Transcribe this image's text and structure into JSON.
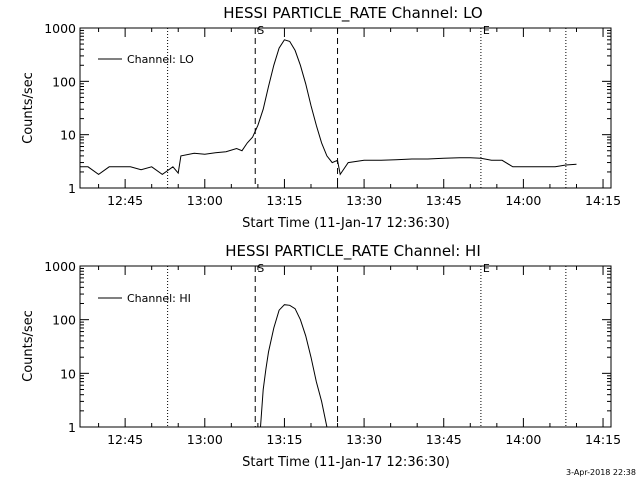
{
  "chart_data": [
    {
      "type": "line",
      "title": "HESSI PARTICLE_RATE Channel: LO",
      "xlabel": "Start Time (11-Jan-17 12:36:30)",
      "ylabel": "Counts/sec",
      "y_scale": "log",
      "ylim": [
        1,
        1000
      ],
      "xlim": [
        "12:36:30",
        "14:16:30"
      ],
      "x_ticks": [
        "12:45",
        "13:00",
        "13:15",
        "13:30",
        "13:45",
        "14:00",
        "14:15"
      ],
      "y_ticks": [
        "1",
        "10",
        "100",
        "1000"
      ],
      "grid": false,
      "legend_position": "top-left",
      "series": [
        {
          "name": "Channel: LO",
          "x": [
            "12:36:30",
            "12:38:00",
            "12:40:00",
            "12:42:00",
            "12:44:00",
            "12:46:00",
            "12:48:00",
            "12:50:00",
            "12:52:00",
            "12:54:00",
            "12:55:00",
            "12:55:30",
            "12:58:00",
            "13:00:00",
            "13:02:00",
            "13:04:00",
            "13:06:00",
            "13:07:00",
            "13:08:00",
            "13:09:00",
            "13:10:00",
            "13:11:00",
            "13:12:00",
            "13:13:00",
            "13:14:00",
            "13:15:00",
            "13:16:00",
            "13:17:00",
            "13:18:00",
            "13:19:00",
            "13:20:00",
            "13:21:00",
            "13:22:00",
            "13:23:00",
            "13:24:00",
            "13:25:00",
            "13:25:30",
            "13:27:00",
            "13:30:00",
            "13:33:00",
            "13:36:00",
            "13:39:00",
            "13:42:00",
            "13:45:00",
            "13:48:00",
            "13:50:00",
            "13:52:00",
            "13:54:00",
            "13:56:00",
            "13:58:00",
            "14:00:00",
            "14:02:00",
            "14:04:00",
            "14:06:00",
            "14:08:00",
            "14:10:00"
          ],
          "values": [
            2.5,
            2.5,
            1.8,
            2.5,
            2.5,
            2.5,
            2.2,
            2.5,
            1.8,
            2.5,
            1.9,
            4.0,
            4.5,
            4.3,
            4.6,
            4.8,
            5.5,
            5.0,
            7.0,
            9.0,
            15,
            30,
            80,
            200,
            420,
            600,
            560,
            380,
            200,
            90,
            35,
            15,
            7.0,
            4.0,
            3.0,
            3.3,
            1.8,
            3.0,
            3.3,
            3.3,
            3.4,
            3.5,
            3.5,
            3.6,
            3.7,
            3.7,
            3.6,
            3.3,
            3.3,
            2.5,
            2.5,
            2.5,
            2.5,
            2.5,
            2.7,
            2.8
          ]
        }
      ],
      "markers": [
        {
          "label": "S",
          "time": "13:09:30",
          "style": "dashed"
        },
        {
          "label": "",
          "time": "13:25:00",
          "style": "dashed"
        },
        {
          "label": "",
          "time": "12:53:00",
          "style": "dotted"
        },
        {
          "label": "E",
          "time": "13:52:00",
          "style": "dotted"
        },
        {
          "label": "",
          "time": "14:08:00",
          "style": "dotted"
        }
      ]
    },
    {
      "type": "line",
      "title": "HESSI PARTICLE_RATE Channel: HI",
      "xlabel": "Start Time (11-Jan-17 12:36:30)",
      "ylabel": "Counts/sec",
      "y_scale": "log",
      "ylim": [
        1,
        1000
      ],
      "xlim": [
        "12:36:30",
        "14:16:30"
      ],
      "x_ticks": [
        "12:45",
        "13:00",
        "13:15",
        "13:30",
        "13:45",
        "14:00",
        "14:15"
      ],
      "y_ticks": [
        "1",
        "10",
        "100",
        "1000"
      ],
      "grid": false,
      "legend_position": "top-left",
      "series": [
        {
          "name": "Channel: HI",
          "x": [
            "13:10:30",
            "13:11:00",
            "13:11:30",
            "13:12:00",
            "13:13:00",
            "13:14:00",
            "13:15:00",
            "13:16:00",
            "13:17:00",
            "13:18:00",
            "13:19:00",
            "13:20:00",
            "13:21:00",
            "13:22:00",
            "13:23:00"
          ],
          "values": [
            1,
            5,
            12,
            25,
            70,
            150,
            190,
            185,
            160,
            100,
            50,
            20,
            7,
            3,
            1
          ]
        }
      ],
      "markers": [
        {
          "label": "S",
          "time": "13:09:30",
          "style": "dashed"
        },
        {
          "label": "",
          "time": "13:25:00",
          "style": "dashed"
        },
        {
          "label": "",
          "time": "12:53:00",
          "style": "dotted"
        },
        {
          "label": "E",
          "time": "13:52:00",
          "style": "dotted"
        },
        {
          "label": "",
          "time": "14:08:00",
          "style": "dotted"
        }
      ]
    }
  ],
  "timestamp": "3-Apr-2018 22:38"
}
